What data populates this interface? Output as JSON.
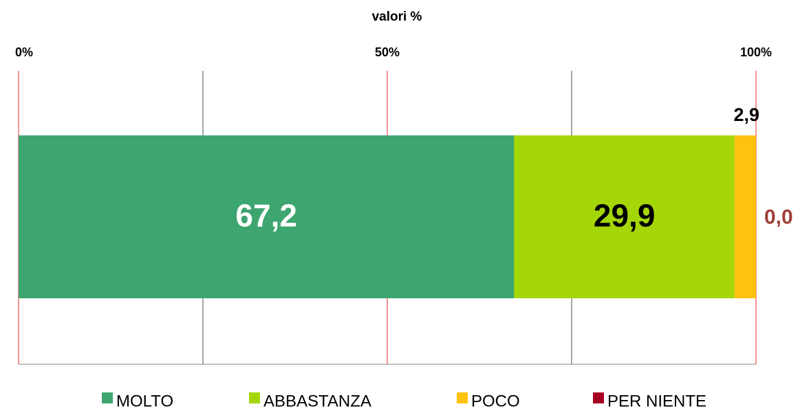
{
  "chart_data": {
    "type": "stacked_bar_horizontal",
    "title": "valori %",
    "xlim": [
      0,
      100
    ],
    "xticks": [
      {
        "value": 0,
        "label": "0%"
      },
      {
        "value": 50,
        "label": "50%"
      },
      {
        "value": 100,
        "label": "100%"
      }
    ],
    "minor_xticks": [
      25,
      75
    ],
    "grid": true,
    "legend": "bottom",
    "series": [
      {
        "name": "MOLTO",
        "color": "#3da56f",
        "label_color": "#ffffff",
        "values": [
          67.2
        ],
        "value_labels": [
          "67,2"
        ]
      },
      {
        "name": "ABBASTANZA",
        "color": "#a5d608",
        "label_color": "#000000",
        "values": [
          29.9
        ],
        "value_labels": [
          "29,9"
        ]
      },
      {
        "name": "POCO",
        "color": "#ffc20e",
        "label_color": "#000000",
        "values": [
          2.9
        ],
        "value_labels": [
          "2,9"
        ]
      },
      {
        "name": "PER NIENTE",
        "color": "#a50021",
        "label_color": "#a0403a",
        "values": [
          0.0
        ],
        "value_labels": [
          "0,0"
        ]
      }
    ]
  }
}
